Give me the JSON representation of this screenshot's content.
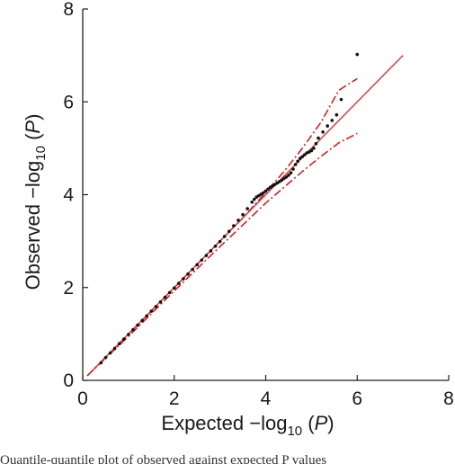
{
  "chart_data": {
    "type": "scatter",
    "title": "",
    "xlabel": {
      "prefix": "Expected −log",
      "sub": "10",
      "suffix": " (",
      "var": "P",
      "close": ")"
    },
    "ylabel": {
      "prefix": "Observed −log",
      "sub": "10",
      "suffix": " (",
      "var": "P",
      "close": ")"
    },
    "xlim": [
      0,
      8
    ],
    "ylim": [
      0,
      8
    ],
    "xticks": [
      "0",
      "2",
      "4",
      "6",
      "8"
    ],
    "yticks": [
      "0",
      "2",
      "4",
      "6",
      "8"
    ],
    "grid": false,
    "legend": "none",
    "colors": {
      "points": "#111111",
      "expected_line": "#e03030",
      "confidence": "#d42020",
      "axis": "#222222"
    },
    "series": [
      {
        "kind": "observed-points",
        "x": [
          0.4,
          0.5,
          0.6,
          0.7,
          0.8,
          0.9,
          1.0,
          1.1,
          1.2,
          1.3,
          1.4,
          1.5,
          1.6,
          1.7,
          1.8,
          1.9,
          2.0,
          2.1,
          2.2,
          2.3,
          2.4,
          2.5,
          2.6,
          2.7,
          2.8,
          2.9,
          3.0,
          3.1,
          3.2,
          3.3,
          3.4,
          3.5,
          3.6,
          3.7,
          3.75,
          3.8,
          3.85,
          3.9,
          3.95,
          4.0,
          4.05,
          4.1,
          4.15,
          4.2,
          4.25,
          4.3,
          4.35,
          4.4,
          4.45,
          4.5,
          4.55,
          4.6,
          4.65,
          4.7,
          4.75,
          4.8,
          4.85,
          4.9,
          4.95,
          5.0,
          5.05,
          5.1,
          5.15,
          5.25,
          5.35,
          5.45,
          5.55,
          5.65,
          6.0
        ],
        "y": [
          0.38,
          0.49,
          0.59,
          0.69,
          0.79,
          0.89,
          0.99,
          1.09,
          1.19,
          1.29,
          1.39,
          1.49,
          1.59,
          1.69,
          1.79,
          1.89,
          1.99,
          2.09,
          2.19,
          2.29,
          2.39,
          2.49,
          2.59,
          2.69,
          2.79,
          2.89,
          2.99,
          3.1,
          3.21,
          3.33,
          3.45,
          3.57,
          3.7,
          3.84,
          3.9,
          3.95,
          3.98,
          4.01,
          4.04,
          4.08,
          4.12,
          4.16,
          4.19,
          4.22,
          4.25,
          4.28,
          4.31,
          4.35,
          4.38,
          4.42,
          4.47,
          4.55,
          4.65,
          4.72,
          4.78,
          4.82,
          4.86,
          4.9,
          4.92,
          4.95,
          5.0,
          5.1,
          5.22,
          5.35,
          5.48,
          5.6,
          5.72,
          6.05,
          7.02
        ]
      },
      {
        "kind": "expected-line",
        "x": [
          0.1,
          7.0
        ],
        "y": [
          0.1,
          7.0
        ]
      },
      {
        "kind": "upper-confidence",
        "x": [
          0.1,
          1.0,
          2.0,
          3.0,
          3.5,
          4.0,
          4.4,
          4.8,
          5.2,
          5.6,
          6.0
        ],
        "y": [
          0.1,
          1.0,
          2.0,
          3.0,
          3.5,
          4.05,
          4.5,
          5.0,
          5.55,
          6.25,
          6.5
        ]
      },
      {
        "kind": "lower-confidence",
        "x": [
          0.1,
          1.0,
          2.0,
          3.0,
          3.5,
          4.0,
          4.4,
          4.8,
          5.2,
          5.6,
          6.0
        ],
        "y": [
          0.1,
          0.95,
          1.93,
          2.88,
          3.35,
          3.82,
          4.16,
          4.5,
          4.82,
          5.12,
          5.32
        ]
      }
    ]
  },
  "caption": "Quantile-quantile plot of observed against expected P values"
}
